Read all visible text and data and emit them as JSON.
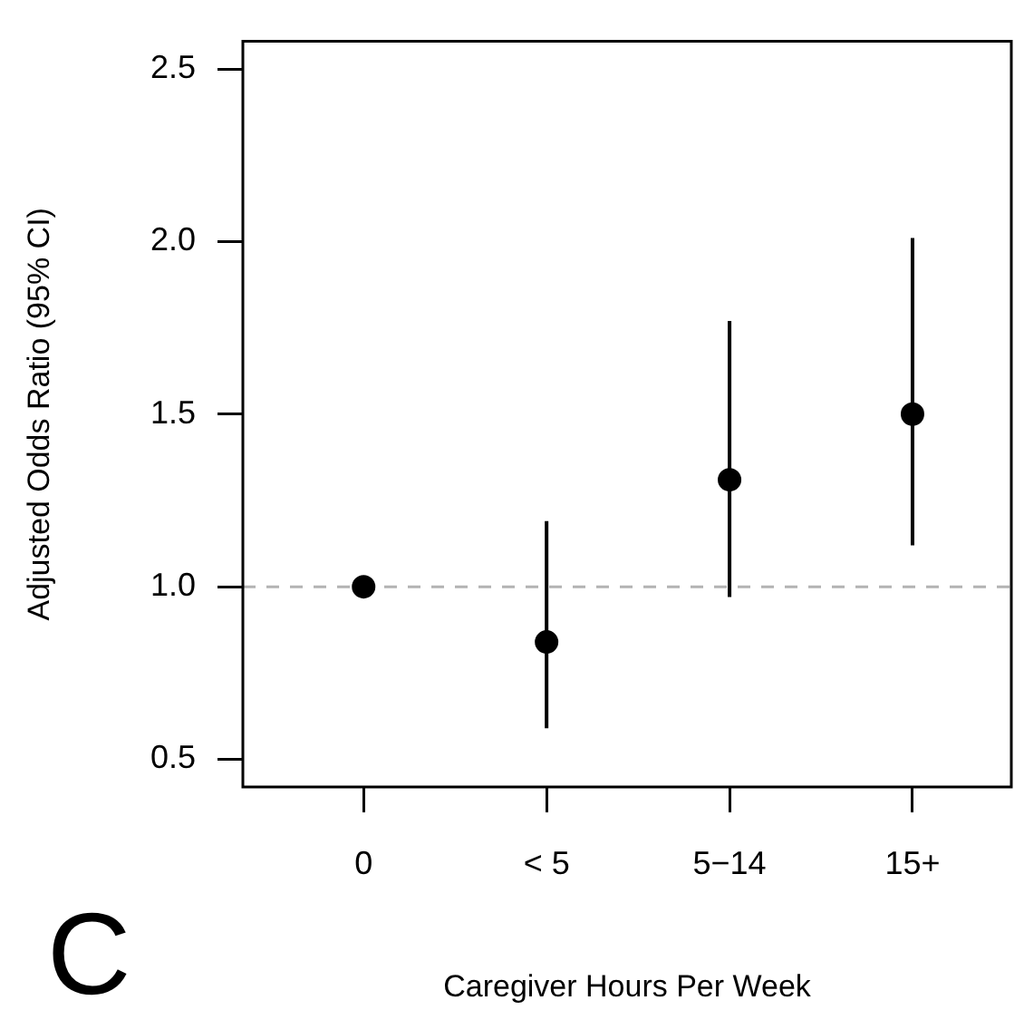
{
  "chart_data": {
    "type": "scatter",
    "xlabel": "Caregiver Hours Per Week",
    "ylabel": "Adjusted Odds Ratio (95% CI)",
    "categories": [
      "0",
      "< 5",
      "5−14",
      "15+"
    ],
    "series": [
      {
        "color": "#000000",
        "values": [
          1.0,
          0.84,
          1.31,
          1.5
        ],
        "errors": [
          null,
          [
            0.59,
            1.19
          ],
          [
            0.97,
            1.77
          ],
          [
            1.12,
            2.01
          ]
        ]
      }
    ],
    "marker": "circle",
    "ylim": [
      0.42,
      2.58
    ],
    "yticks": [
      0.5,
      {
        "value": 1,
        "label": "1.0"
      },
      1.5,
      {
        "value": 2,
        "label": "2.0"
      },
      2.5
    ],
    "ref_lines": [
      {
        "axis": "y",
        "value": 1,
        "color": "#b3b3b3",
        "line_style": "dashed"
      }
    ],
    "annotations": [
      "C"
    ]
  }
}
